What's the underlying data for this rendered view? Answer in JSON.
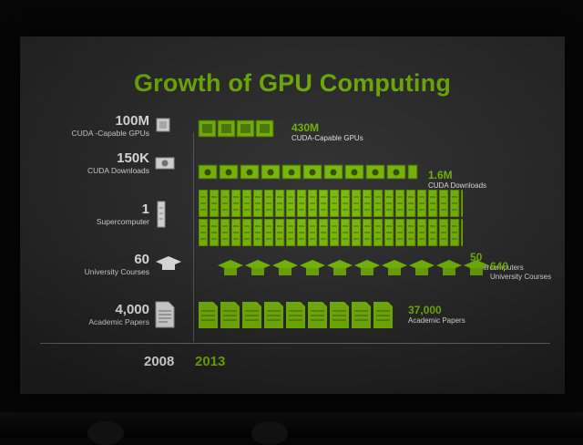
{
  "title": "Growth of GPU Computing",
  "years": {
    "old": "2008",
    "new": "2013"
  },
  "colors": {
    "accent": "#76b900",
    "background": "#262726",
    "text": "#f2f2f2"
  },
  "rows": [
    {
      "old_value": "100M",
      "old_label": "CUDA -Capable GPUs",
      "new_value": "430M",
      "new_label": "CUDA-Capable GPUs",
      "icon": "gpu-chip-icon",
      "icon_count": 4
    },
    {
      "old_value": "150K",
      "old_label": "CUDA Downloads",
      "new_value": "1.6M",
      "new_label": "CUDA Downloads",
      "icon": "download-folder-icon",
      "icon_count": 10
    },
    {
      "old_value": "1",
      "old_label": "Supercomputer",
      "new_value": "50",
      "new_label": "Supercomputers",
      "icon": "server-rack-icon",
      "icon_count": 50
    },
    {
      "old_value": "60",
      "old_label": "University Courses",
      "new_value": "640",
      "new_label": "University Courses",
      "icon": "graduation-cap-icon",
      "icon_count": 10
    },
    {
      "old_value": "4,000",
      "old_label": "Academic Papers",
      "new_value": "37,000",
      "new_label": "Academic Papers",
      "icon": "document-icon",
      "icon_count": 9
    }
  ]
}
